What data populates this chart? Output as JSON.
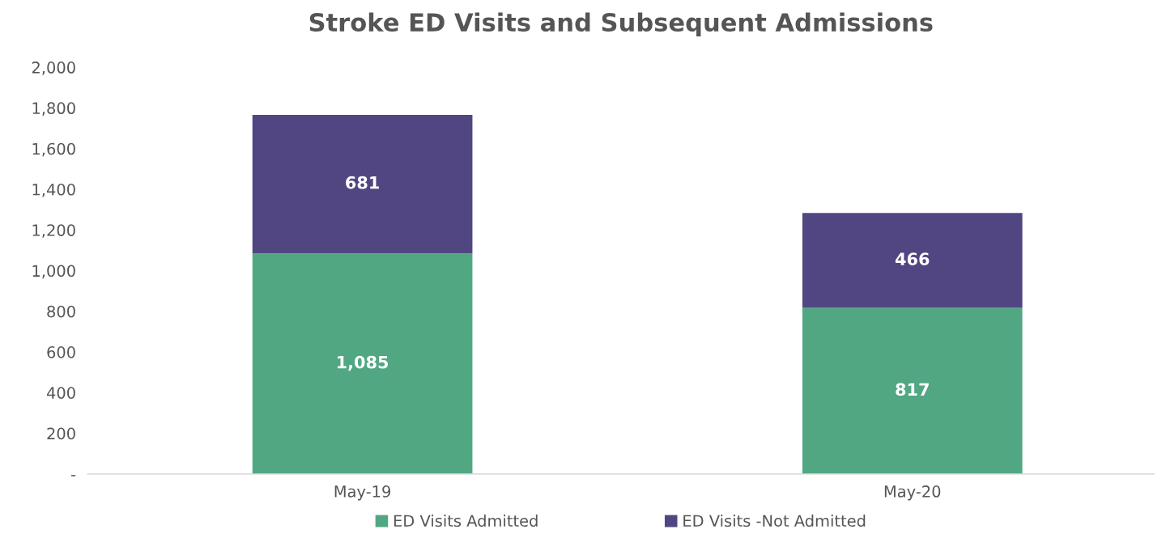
{
  "chart_data": {
    "type": "bar",
    "title": "Stroke ED Visits and Subsequent Admissions",
    "categories": [
      "May-19",
      "May-20"
    ],
    "stacked": true,
    "series": [
      {
        "name": "ED Visits Admitted",
        "color": "#52a783",
        "values": [
          1085,
          817
        ],
        "value_labels": [
          "1,085",
          "817"
        ]
      },
      {
        "name": "ED Visits -Not Admitted",
        "color": "#514682",
        "values": [
          681,
          466
        ],
        "value_labels": [
          "681",
          "466"
        ]
      }
    ],
    "ylim": [
      0,
      2000
    ],
    "yticks": [
      {
        "value": 0,
        "label": "-"
      },
      {
        "value": 200,
        "label": "200"
      },
      {
        "value": 400,
        "label": "400"
      },
      {
        "value": 600,
        "label": "600"
      },
      {
        "value": 800,
        "label": "800"
      },
      {
        "value": 1000,
        "label": "1,000"
      },
      {
        "value": 1200,
        "label": "1,200"
      },
      {
        "value": 1400,
        "label": "1,400"
      },
      {
        "value": 1600,
        "label": "1,600"
      },
      {
        "value": 1800,
        "label": "1,800"
      },
      {
        "value": 2000,
        "label": "2,000"
      }
    ],
    "grid": false,
    "legend": "bottom"
  }
}
